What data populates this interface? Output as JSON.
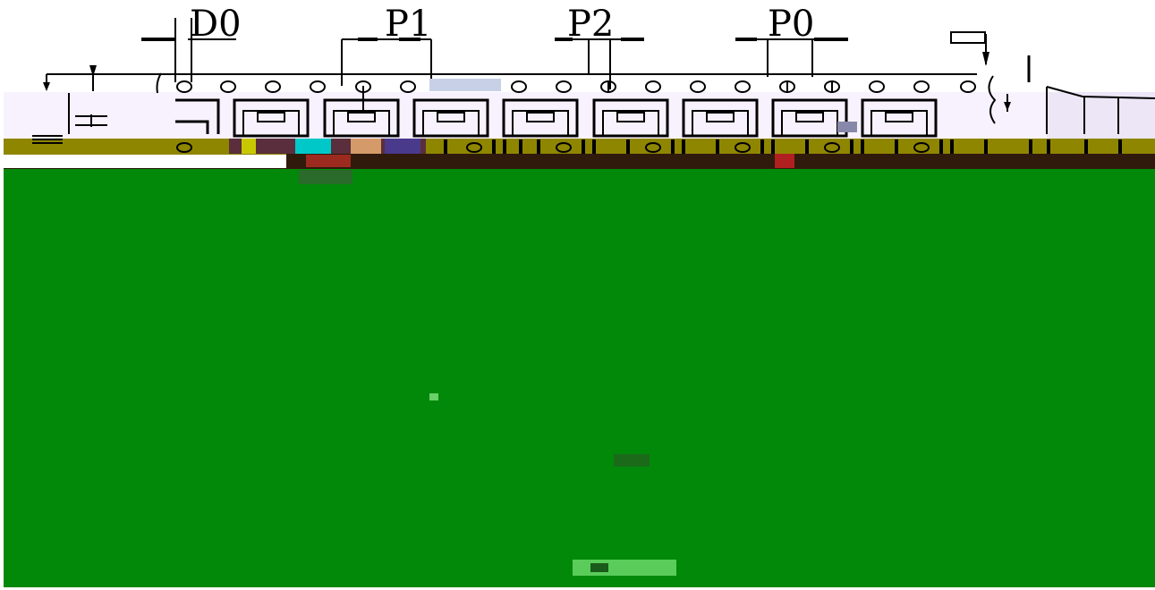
{
  "labels": {
    "d0": "D0",
    "p1": "P1",
    "p2": "P2",
    "p0": "P0"
  },
  "colors": {
    "background": "#ffffff",
    "ink": "#000000",
    "tape_band": "#f8f2ff",
    "olive_strip": "#8f8600",
    "brown_strip": "#2f1a0c",
    "green_area": "#02890a"
  },
  "icons": {
    "sprocket_hole": "circle-outline",
    "pocket": "rectangle-cavity",
    "dimension_arrow": "arrow-head"
  }
}
